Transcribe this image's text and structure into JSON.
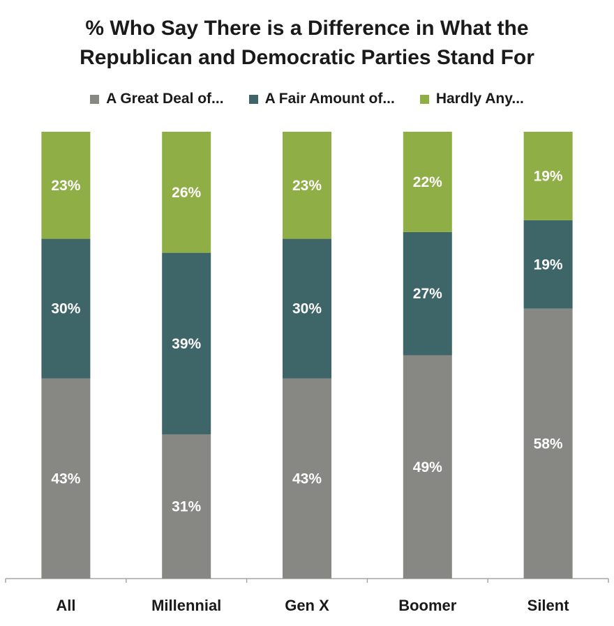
{
  "chart_data": {
    "type": "bar",
    "stacked": true,
    "title_line1": "% Who Say There is a Difference in What the",
    "title_line2": "Republican and Democratic Parties Stand For",
    "categories": [
      "All",
      "Millennial",
      "Gen X",
      "Boomer",
      "Silent"
    ],
    "series": [
      {
        "name": "A Great Deal of...",
        "color": "#878783",
        "values": [
          43,
          31,
          43,
          49,
          58
        ],
        "labels": [
          "43%",
          "31%",
          "43%",
          "49%",
          "58%"
        ]
      },
      {
        "name": "A Fair Amount of...",
        "color": "#3e6668",
        "values": [
          30,
          39,
          30,
          27,
          19
        ],
        "labels": [
          "30%",
          "39%",
          "30%",
          "27%",
          "19%"
        ]
      },
      {
        "name": "Hardly Any...",
        "color": "#8fae45",
        "values": [
          23,
          26,
          23,
          22,
          19
        ],
        "labels": [
          "23%",
          "26%",
          "23%",
          "22%",
          "19%"
        ]
      }
    ],
    "ylim": [
      0,
      100
    ],
    "grid": false,
    "legend_position": "top"
  }
}
